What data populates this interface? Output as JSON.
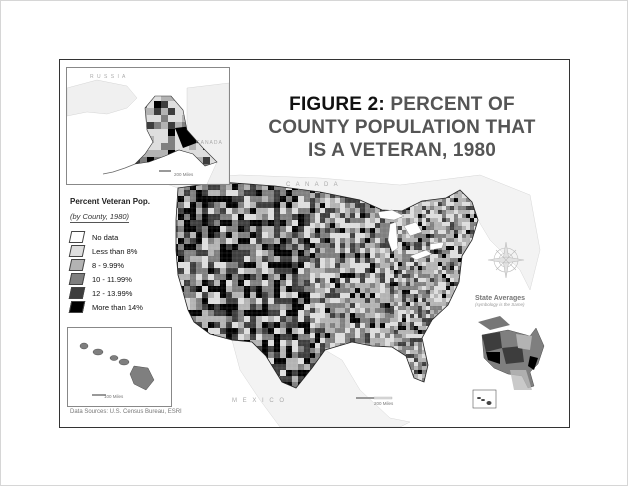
{
  "map": {
    "title_prefix": "FIGURE 2:",
    "title_rest": "PERCENT OF COUNTY POPULATION THAT IS A VETERAN, 1980",
    "legend": {
      "title": "Percent Veteran Pop.",
      "subtitle": "(by County, 1980)",
      "items": [
        {
          "label": "No data",
          "color": "#ffffff"
        },
        {
          "label": "Less than 8%",
          "color": "#dedede"
        },
        {
          "label": "8 - 9.99%",
          "color": "#b3b3b3"
        },
        {
          "label": "10 - 11.99%",
          "color": "#7f7f7f"
        },
        {
          "label": "12 - 13.99%",
          "color": "#3d3d3d"
        },
        {
          "label": "More than 14%",
          "color": "#000000"
        }
      ]
    },
    "labels": {
      "canada": "C A N A D A",
      "mexico": "M E X I C O",
      "russia": "R U S S I A",
      "canada_inset": "CANADA"
    },
    "scale_alaska": "200 Miles",
    "scale_hawaii": "100 Miles",
    "scale_main": "200 Miles",
    "state_averages": {
      "title": "State Averages",
      "subtitle": "(symbology is the Same)"
    },
    "sources": "Data Sources: U.S. Census Bureau, ESRI"
  }
}
